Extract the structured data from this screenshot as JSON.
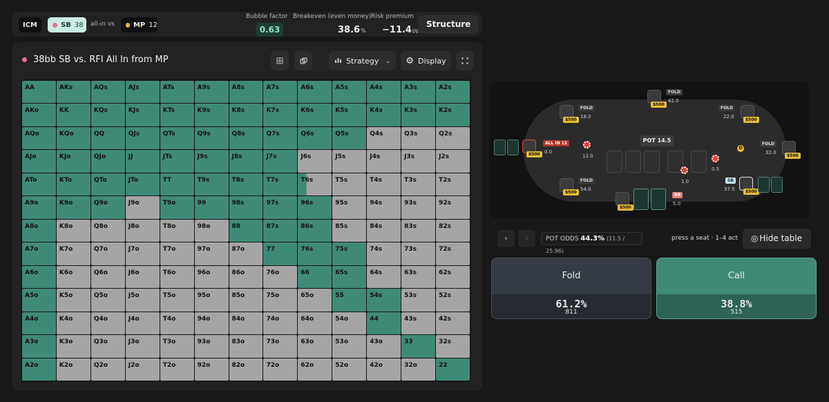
{
  "topbar": {
    "icm": "ICM",
    "hero": {
      "pos": "SB",
      "stack": "38",
      "color": "#e5738b"
    },
    "vs": "all-in vs",
    "villain": {
      "pos": "MP",
      "stack": "12",
      "color": "#e4b93a"
    },
    "bubble_label": "Bubble factor",
    "bubble_value": "0.63",
    "breakeven_label": "Breakeven (even money)",
    "breakeven_value": "38.6",
    "breakeven_unit": "%",
    "risk_label": "Risk premium",
    "risk_value": "−11.4",
    "risk_unit": "pp",
    "structure": "Structure"
  },
  "panel": {
    "title": "38bb SB vs. RFI All In from MP",
    "strategy": "Strategy",
    "display": "Display"
  },
  "colors": {
    "call": "#3f8a77",
    "fold": "#a5a5a5"
  },
  "grid": [
    {
      "h": [
        "AA",
        "AKs",
        "AQs",
        "AJs",
        "ATs",
        "A9s",
        "A8s",
        "A7s",
        "A6s",
        "A5s",
        "A4s",
        "A3s",
        "A2s"
      ],
      "c": [
        1,
        1,
        1,
        1,
        1,
        1,
        1,
        1,
        1,
        1,
        1,
        1,
        1
      ]
    },
    {
      "h": [
        "AKo",
        "KK",
        "KQs",
        "KJs",
        "KTs",
        "K9s",
        "K8s",
        "K7s",
        "K6s",
        "K5s",
        "K4s",
        "K3s",
        "K2s"
      ],
      "c": [
        1,
        1,
        1,
        1,
        1,
        1,
        1,
        1,
        1,
        1,
        1,
        1,
        1
      ]
    },
    {
      "h": [
        "AQo",
        "KQo",
        "QQ",
        "QJs",
        "QTs",
        "Q9s",
        "Q8s",
        "Q7s",
        "Q6s",
        "Q5s",
        "Q4s",
        "Q3s",
        "Q2s"
      ],
      "c": [
        1,
        1,
        1,
        1,
        1,
        1,
        1,
        1,
        1,
        1,
        0,
        0,
        0
      ]
    },
    {
      "h": [
        "AJo",
        "KJo",
        "QJo",
        "JJ",
        "JTs",
        "J9s",
        "J8s",
        "J7s",
        "J6s",
        "J5s",
        "J4s",
        "J3s",
        "J2s"
      ],
      "c": [
        1,
        1,
        1,
        1,
        1,
        1,
        1,
        1,
        0,
        0,
        0,
        0,
        0
      ]
    },
    {
      "h": [
        "ATo",
        "KTo",
        "QTo",
        "JTo",
        "TT",
        "T9s",
        "T8s",
        "T7s",
        "T6s",
        "T5s",
        "T4s",
        "T3s",
        "T2s"
      ],
      "c": [
        1,
        1,
        1,
        1,
        1,
        1,
        1,
        1,
        0.25,
        0,
        0,
        0,
        0
      ]
    },
    {
      "h": [
        "A9o",
        "K9o",
        "Q9o",
        "J9o",
        "T9o",
        "99",
        "98s",
        "97s",
        "96s",
        "95s",
        "94s",
        "93s",
        "92s"
      ],
      "c": [
        1,
        1,
        1,
        0,
        1,
        1,
        1,
        1,
        1,
        0,
        0,
        0,
        0
      ]
    },
    {
      "h": [
        "A8o",
        "K8o",
        "Q8o",
        "J8o",
        "T8o",
        "98o",
        "88",
        "87s",
        "86s",
        "85s",
        "84s",
        "83s",
        "82s"
      ],
      "c": [
        1,
        0,
        0,
        0,
        0,
        0,
        1,
        1,
        1,
        0,
        0,
        0,
        0
      ]
    },
    {
      "h": [
        "A7o",
        "K7o",
        "Q7o",
        "J7o",
        "T7o",
        "97o",
        "87o",
        "77",
        "76s",
        "75s",
        "74s",
        "73s",
        "72s"
      ],
      "c": [
        1,
        0,
        0,
        0,
        0,
        0,
        0,
        1,
        1,
        1,
        0,
        0,
        0
      ]
    },
    {
      "h": [
        "A6o",
        "K6o",
        "Q6o",
        "J6o",
        "T6o",
        "96o",
        "86o",
        "76o",
        "66",
        "65s",
        "64s",
        "63s",
        "62s"
      ],
      "c": [
        1,
        0,
        0,
        0,
        0,
        0,
        0,
        0,
        1,
        1,
        0,
        0,
        0
      ]
    },
    {
      "h": [
        "A5o",
        "K5o",
        "Q5o",
        "J5o",
        "T5o",
        "95o",
        "85o",
        "75o",
        "65o",
        "55",
        "54s",
        "53s",
        "52s"
      ],
      "c": [
        1,
        0,
        0,
        0,
        0,
        0,
        0,
        0,
        0,
        1,
        1,
        0,
        0
      ]
    },
    {
      "h": [
        "A4o",
        "K4o",
        "Q4o",
        "J4o",
        "T4o",
        "94o",
        "84o",
        "74o",
        "64o",
        "54o",
        "44",
        "43s",
        "42s"
      ],
      "c": [
        1,
        0,
        0,
        0,
        0,
        0,
        0,
        0,
        0,
        0,
        1,
        0,
        0
      ]
    },
    {
      "h": [
        "A3o",
        "K3o",
        "Q3o",
        "J3o",
        "T3o",
        "93o",
        "83o",
        "73o",
        "63o",
        "53o",
        "43o",
        "33",
        "32s"
      ],
      "c": [
        1,
        0,
        0,
        0,
        0,
        0,
        0,
        0,
        0,
        0,
        0,
        1,
        0
      ]
    },
    {
      "h": [
        "A2o",
        "K2o",
        "Q2o",
        "J2o",
        "T2o",
        "92o",
        "82o",
        "72o",
        "62o",
        "52o",
        "42o",
        "32o",
        "22"
      ],
      "c": [
        1,
        0,
        0,
        0,
        0,
        0,
        0,
        0,
        0,
        0,
        0,
        0,
        1
      ]
    }
  ],
  "table": {
    "pot_label": "POT",
    "pot_value": "14.5",
    "seats": [
      {
        "name": "top",
        "status": "FOLD",
        "stack": "42.0",
        "chip": "$500"
      },
      {
        "name": "upper-left",
        "status": "FOLD",
        "stack": "18.0",
        "chip": "$500"
      },
      {
        "name": "upper-right",
        "status": "FOLD",
        "stack": "22.0",
        "chip": "$500"
      },
      {
        "name": "mp",
        "status": "ALL IN 12",
        "stack": "0.0",
        "chip": "$500",
        "bet": "12.0"
      },
      {
        "name": "right",
        "status": "FOLD",
        "stack": "32.0",
        "chip": "$500"
      },
      {
        "name": "lower-left",
        "status": "FOLD",
        "stack": "54.0",
        "chip": "$500"
      },
      {
        "name": "sb",
        "status": "SB",
        "stack": "37.5",
        "chip": "$500",
        "bet": "0.5"
      },
      {
        "name": "bb",
        "status": "BB",
        "stack": "5.0",
        "chip": "$500",
        "bet": "1.0"
      }
    ],
    "dealer": "D"
  },
  "controls": {
    "prev": "‹",
    "next": "›",
    "pot_odds_label": "POT ODDS",
    "pot_odds_value": "44.3%",
    "pot_odds_detail": "(11.5 / 25.96)",
    "hint": "press a seat · 1–4 act",
    "hide_table": "Hide table"
  },
  "actions": {
    "fold": {
      "label": "Fold",
      "pct": "61.2%",
      "count": "811"
    },
    "call": {
      "label": "Call",
      "pct": "38.8%",
      "count": "515"
    }
  }
}
